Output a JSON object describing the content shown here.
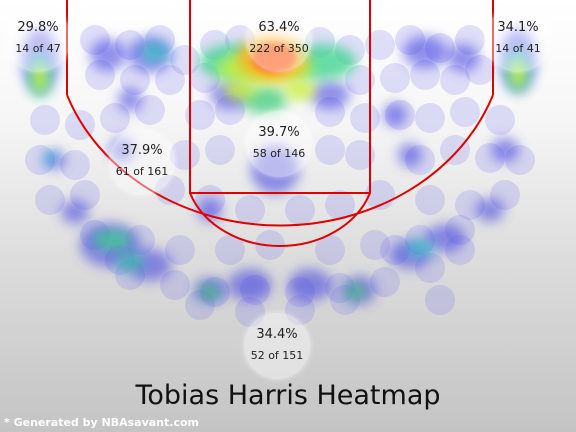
{
  "title": "Tobias Harris Heatmap",
  "credit": "* Generated by NBAsavant.com",
  "colors": {
    "court_line": "#e00000",
    "zone_fill": "#ffffff"
  },
  "chart_data": {
    "type": "heatmap",
    "title": "Tobias Harris Heatmap",
    "zones": [
      {
        "id": "left-corner-three",
        "pct": "29.8%",
        "made_of_attempts": "14 of 47",
        "made": 14,
        "attempts": 47
      },
      {
        "id": "restricted-area",
        "pct": "63.4%",
        "made_of_attempts": "222 of 350",
        "made": 222,
        "attempts": 350
      },
      {
        "id": "right-corner-three",
        "pct": "34.1%",
        "made_of_attempts": "14 of 41",
        "made": 14,
        "attempts": 41
      },
      {
        "id": "left-mid-range",
        "pct": "37.9%",
        "made_of_attempts": "61 of 161",
        "made": 61,
        "attempts": 161
      },
      {
        "id": "paint-non-ra",
        "pct": "39.7%",
        "made_of_attempts": "58 of 146",
        "made": 58,
        "attempts": 146
      },
      {
        "id": "above-break-three",
        "pct": "34.4%",
        "made_of_attempts": "52 of 151",
        "made": 52,
        "attempts": 151
      }
    ]
  }
}
